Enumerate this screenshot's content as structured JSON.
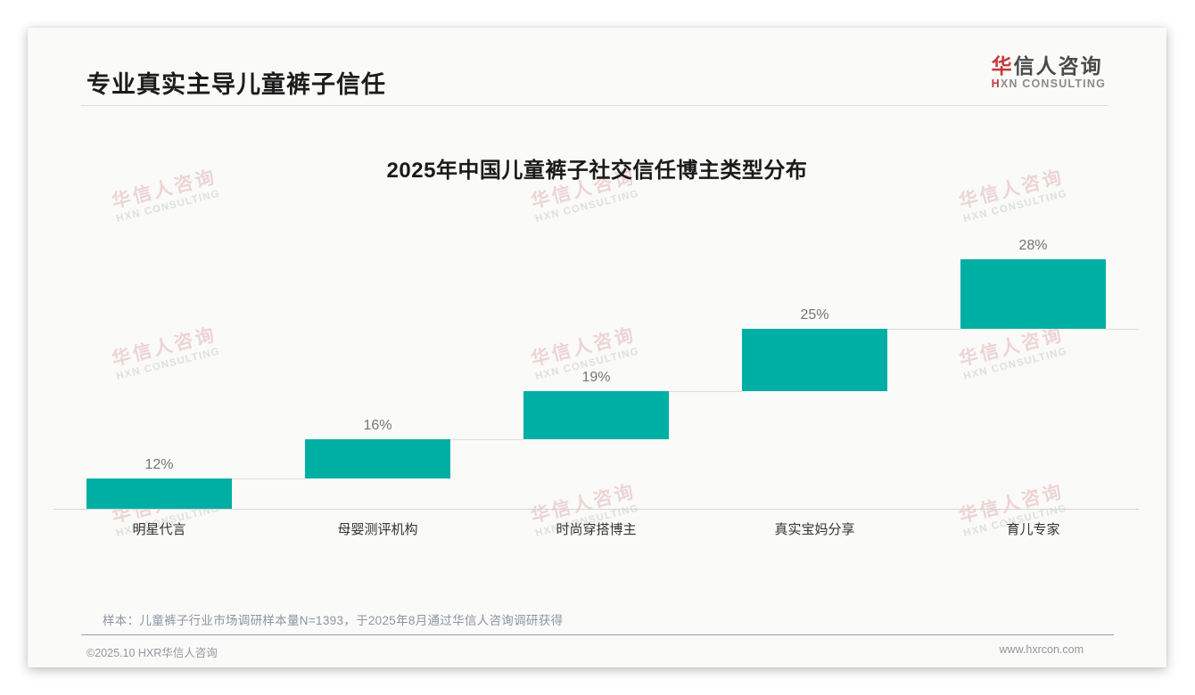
{
  "page_title": "专业真实主导儿童裤子信任",
  "logo": {
    "zh_first": "华",
    "zh_rest": "信人咨询",
    "en_first": "H",
    "en_rest": "XN CONSULTING"
  },
  "chart_data": {
    "type": "bar",
    "subtype": "waterfall-step",
    "title": "2025年中国儿童裤子社交信任博主类型分布",
    "categories": [
      "明星代言",
      "母婴测评机构",
      "时尚穿搭博主",
      "真实宝妈分享",
      "育儿专家"
    ],
    "values": [
      12,
      16,
      19,
      25,
      28
    ],
    "value_labels": [
      "12%",
      "16%",
      "19%",
      "25%",
      "28%"
    ],
    "unit": "%",
    "ylim": [
      0,
      100
    ],
    "grid": false,
    "legend": false,
    "bar_color": "#00afa4",
    "cumulative": true
  },
  "watermark": {
    "line1": "华信人咨询",
    "line2": "HXN CONSULTING"
  },
  "footnote": "样本：儿童裤子行业市场调研样本量N=1393，于2025年8月通过华信人咨询调研获得",
  "footer": {
    "left": "©2025.10 HXR华信人咨询",
    "right": "www.hxrcon.com"
  },
  "colors": {
    "bar_teal": "#00afa4",
    "logo_red": "#c23a3a",
    "title_black": "#1c1c1c",
    "footnote_gray_blue": "#8c95a4",
    "watermark_pink": "rgba(186,84,84,0.22)"
  }
}
